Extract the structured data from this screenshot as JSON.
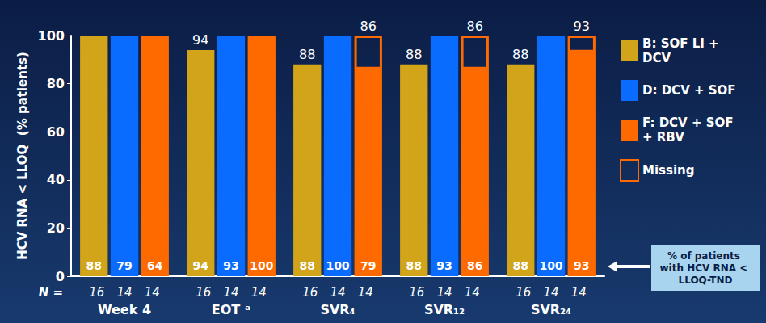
{
  "chart_data": {
    "type": "bar",
    "categories": [
      "Week 4",
      "EOT ᵃ",
      "SVR₄",
      "SVR₁₂",
      "SVR₂₄"
    ],
    "y_label": "HCV RNA < LLOQ  (% patients)",
    "ylim": [
      0,
      100
    ],
    "yticks": [
      0,
      20,
      40,
      60,
      80,
      100
    ],
    "grid": false,
    "legend": "right",
    "n_label": "N =",
    "tnd_label": "% of patients with HCV RNA < LLOQ-TND",
    "series": [
      {
        "name": "B: SOF LI + DCV",
        "color": "#D1A419",
        "values": [
          100,
          94,
          88,
          88,
          88
        ],
        "value_labels": [
          null,
          "94",
          "88",
          "88",
          "88"
        ],
        "tnd_values": [
          88,
          94,
          88,
          88,
          88
        ],
        "n": [
          16,
          16,
          16,
          16,
          16
        ]
      },
      {
        "name": "D: DCV + SOF",
        "color": "#0A6CFF",
        "values": [
          100,
          100,
          100,
          100,
          100
        ],
        "tnd_values": [
          79,
          93,
          100,
          93,
          100
        ],
        "n": [
          14,
          14,
          14,
          14,
          14
        ]
      },
      {
        "name": "F: DCV + SOF + RBV",
        "color": "#FF6A00",
        "values": [
          100,
          100,
          86,
          86,
          93
        ],
        "value_labels": [
          null,
          null,
          "86",
          "86",
          "93"
        ],
        "tnd_values": [
          64,
          100,
          79,
          86,
          93
        ],
        "n": [
          14,
          14,
          14,
          14,
          14
        ]
      },
      {
        "name": "Missing",
        "color": "#FF6A00",
        "stacked": true,
        "values": [
          null,
          null,
          14,
          14,
          7
        ]
      }
    ]
  }
}
